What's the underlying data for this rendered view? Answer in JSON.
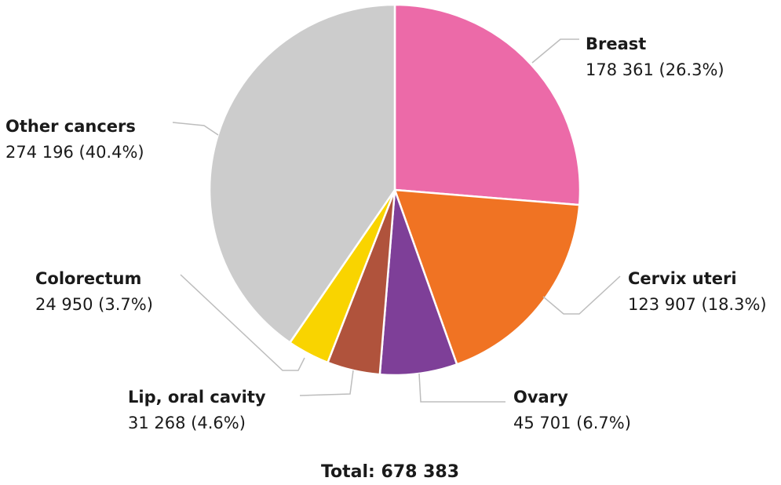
{
  "chart_data": {
    "type": "pie",
    "total_label": "Total: 678 383",
    "slices": [
      {
        "name": "Breast",
        "value": 178361,
        "value_label": "178 361 (26.3%)",
        "color": "#ec6aa8"
      },
      {
        "name": "Cervix uteri",
        "value": 123907,
        "value_label": "123 907 (18.3%)",
        "color": "#f07323"
      },
      {
        "name": "Ovary",
        "value": 45701,
        "value_label": "45 701 (6.7%)",
        "color": "#7e3f98"
      },
      {
        "name": "Lip, oral cavity",
        "value": 31268,
        "value_label": "31 268 (4.6%)",
        "color": "#b0533c"
      },
      {
        "name": "Colorectum",
        "value": 24950,
        "value_label": "24 950 (3.7%)",
        "color": "#f9d400"
      },
      {
        "name": "Other cancers",
        "value": 274196,
        "value_label": "274 196 (40.4%)",
        "color": "#cccccc"
      }
    ]
  }
}
